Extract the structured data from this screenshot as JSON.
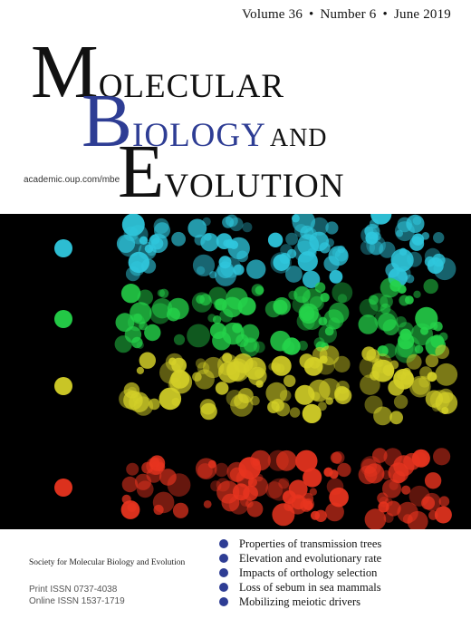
{
  "issue": {
    "volume": "Volume 36",
    "number": "Number 6",
    "date": "June 2019",
    "separator": "•"
  },
  "title": {
    "w1_initial": "M",
    "w1_rest": "OLECULAR",
    "w2_initial": "B",
    "w2_rest": "IOLOGY",
    "w2_and": "AND",
    "w3_initial": "E",
    "w3_rest": "VOLUTION"
  },
  "url": "academic.oup.com/mbe",
  "society": "Society for Molecular Biology and Evolution",
  "issn": {
    "print": "Print ISSN 0737-4038",
    "online": "Online ISSN 1537-1719"
  },
  "topics": [
    "Properties of transmission trees",
    "Elevation and evolutionary rate",
    "Impacts of orthology selection",
    "Loss of sebum in sea mammals",
    "Mobilizing meiotic drivers"
  ],
  "colors": {
    "title_accent": "#2e3d94",
    "bullet": "#2e3d94",
    "row_colors": [
      "#2fc7dd",
      "#25d34a",
      "#d4d028",
      "#e8341f"
    ]
  },
  "artwork": {
    "description_icon": "bubble-artwork"
  }
}
